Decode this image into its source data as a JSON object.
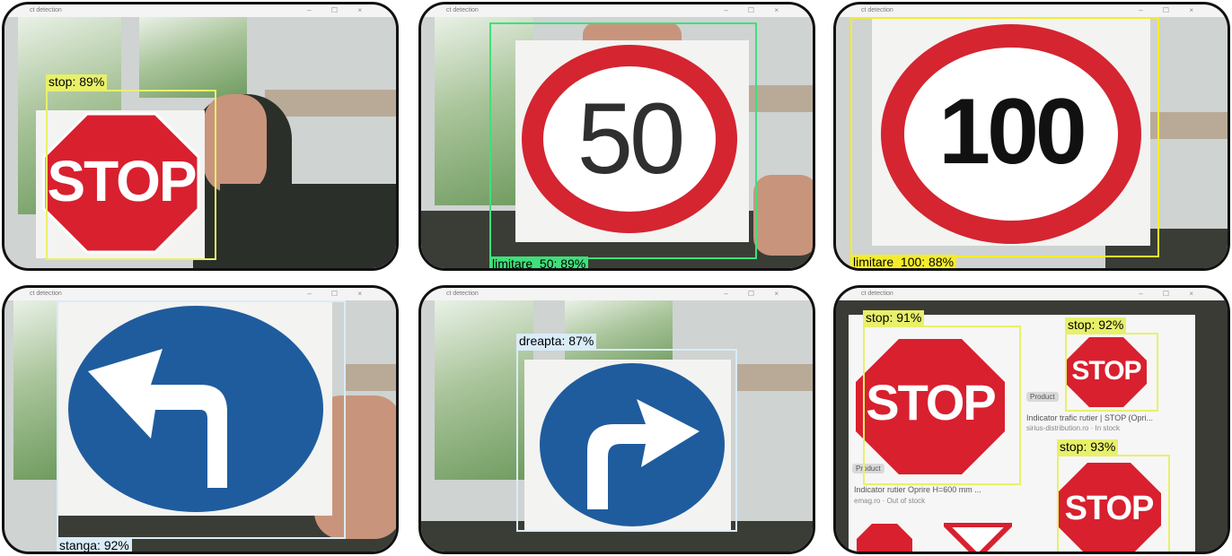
{
  "window_title": "ct detection",
  "window_buttons": "– ☐ ×",
  "colors": {
    "stop_red": "#d8202f",
    "limit_red": "#d42531",
    "blue_sign": "#1f5c9e",
    "box_yellow": "#e8f06a",
    "box_green": "#3fe07a",
    "box_yellow_strong": "#f4ec2a",
    "box_lightblue": "#d9ecf7"
  },
  "panels": [
    {
      "detections": [
        {
          "label": "stop: 89%"
        }
      ],
      "sign_text": "STOP"
    },
    {
      "detections": [
        {
          "label": "limitare_50: 89%"
        }
      ],
      "sign_text": "50"
    },
    {
      "detections": [
        {
          "label": "limitare_100: 88%"
        }
      ],
      "sign_text": "100"
    },
    {
      "detections": [
        {
          "label": "stanga: 92%"
        }
      ],
      "sign_icon": "arrow-left-turn-icon"
    },
    {
      "detections": [
        {
          "label": "dreapta: 87%"
        }
      ],
      "sign_icon": "arrow-right-turn-icon"
    },
    {
      "detections": [
        {
          "label": "stop: 91%"
        },
        {
          "label": "stop: 92%"
        },
        {
          "label": "stop: 93%"
        }
      ],
      "sign_text": "STOP",
      "screen_text": {
        "product_chip": "Product",
        "item1_title": "Indicator trafic rutier | STOP (Opri...",
        "item1_source": "sirius-distribution.ro · In stock",
        "item2_title": "Indicator rutier Oprire H=600 mm ...",
        "item2_source": "emag.ro · Out of stock"
      }
    }
  ]
}
